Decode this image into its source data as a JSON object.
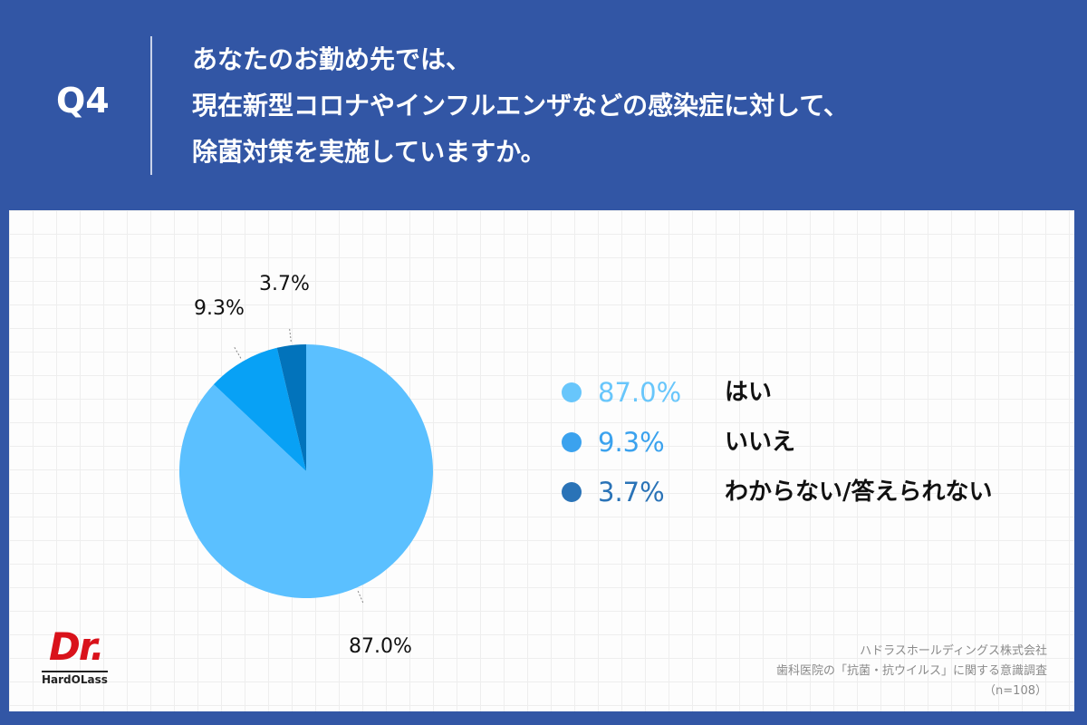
{
  "header": {
    "q_label": "Q4",
    "question_lines": [
      "あなたのお勤め先では、",
      "現在新型コロナやインフルエンザなどの感染症に対して、",
      "除菌対策を実施していますか。"
    ]
  },
  "chart_data": {
    "type": "pie",
    "title": "",
    "slices": [
      {
        "label": "はい",
        "value": 87.0,
        "display": "87.0%",
        "color": "#5bc0ff"
      },
      {
        "label": "いいえ",
        "value": 9.3,
        "display": "9.3%",
        "color": "#08a1f5"
      },
      {
        "label": "わからない/答えられない",
        "value": 3.7,
        "display": "3.7%",
        "color": "#0273bb"
      }
    ],
    "legend_placement": "right",
    "legend_colors": [
      "#68c6fb",
      "#3ba2ee",
      "#2a73b7"
    ]
  },
  "logo": {
    "main": "Dr.",
    "sub": "HardOLass"
  },
  "source": {
    "lines": [
      "ハドラスホールディングス株式会社",
      "歯科医院の「抗菌・抗ウイルス」に関する意識調査",
      "（n=108）"
    ]
  }
}
